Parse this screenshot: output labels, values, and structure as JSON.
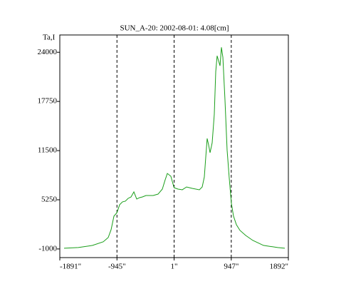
{
  "chart_data": {
    "type": "line",
    "title": "SUN_A-20: 2002-08-01: 4.08[cm]",
    "y_label": "Ta,I",
    "xlim": [
      -1891,
      1892
    ],
    "ylim": [
      -2100,
      26200
    ],
    "xticks": [
      {
        "value": -1891,
        "label": "-1891\""
      },
      {
        "value": -945,
        "label": "-945\""
      },
      {
        "value": 1,
        "label": "1\""
      },
      {
        "value": 947,
        "label": "947\""
      },
      {
        "value": 1892,
        "label": "1892\""
      }
    ],
    "yticks": [
      -1000,
      5250,
      11500,
      17750,
      24000
    ],
    "grid": "dashed-x",
    "series": [
      {
        "color": "#1a9e1a",
        "x": [
          -1820,
          -1585,
          -1349,
          -1172,
          -1090,
          -1042,
          -995,
          -945,
          -901,
          -854,
          -807,
          -760,
          -712,
          -665,
          -618,
          -571,
          -524,
          -465,
          -347,
          -265,
          -194,
          -147,
          -111,
          -53,
          0,
          65,
          136,
          207,
          301,
          419,
          466,
          501,
          525,
          548,
          572,
          596,
          631,
          666,
          690,
          713,
          737,
          761,
          784,
          808,
          843,
          878,
          914,
          949,
          984,
          1032,
          1091,
          1185,
          1303,
          1480,
          1715,
          1833
        ],
        "values": [
          -910,
          -820,
          -550,
          -90,
          450,
          1450,
          3170,
          3620,
          4620,
          4980,
          5070,
          5430,
          5610,
          6250,
          5340,
          5520,
          5610,
          5790,
          5790,
          5970,
          6610,
          7790,
          8600,
          8240,
          6790,
          6610,
          6520,
          6880,
          6700,
          6520,
          6880,
          8150,
          10690,
          13040,
          12220,
          11230,
          12500,
          16120,
          21550,
          23550,
          22910,
          22280,
          24630,
          23370,
          17930,
          11590,
          7970,
          4800,
          3170,
          2080,
          1360,
          720,
          90,
          -550,
          -820,
          -910
        ]
      }
    ]
  }
}
